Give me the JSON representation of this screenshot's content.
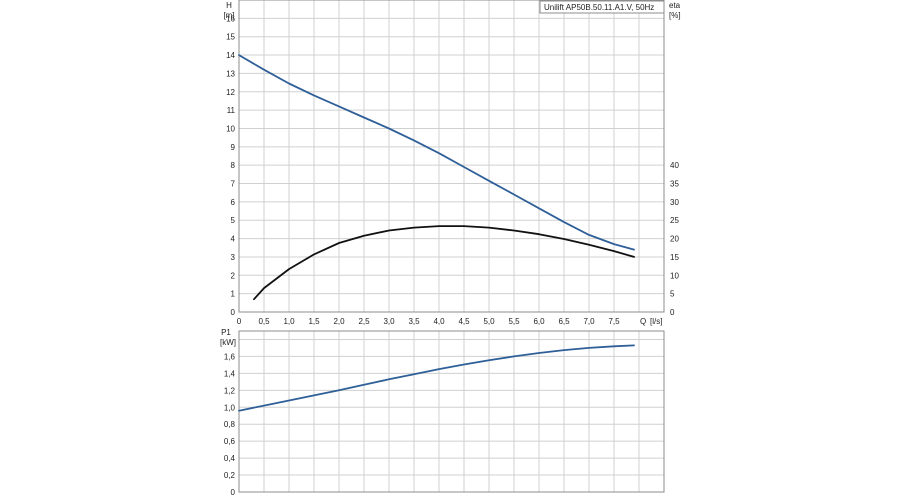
{
  "chart_data": [
    {
      "id": "head_eta",
      "type": "line",
      "legend": "Unilift AP50B.50.11.A1.V, 50Hz",
      "xlabel_unit": "Q [l/s]",
      "xlabel": "Q",
      "xunit": "[l/s]",
      "ylabel": "H",
      "yunit": "[m]",
      "y2label": "eta",
      "y2unit": "[%]",
      "xlim": [
        0,
        8.5
      ],
      "ylim": [
        0,
        17
      ],
      "y2lim": [
        0,
        85
      ],
      "grid": true,
      "x_ticks": [
        "0",
        "0,5",
        "1,0",
        "1,5",
        "2,0",
        "2,5",
        "3,0",
        "3,5",
        "4,0",
        "4,5",
        "5,0",
        "5,5",
        "6,0",
        "6,5",
        "7,0",
        "7,5"
      ],
      "y_ticks": [
        "0",
        "1",
        "2",
        "3",
        "4",
        "5",
        "6",
        "7",
        "8",
        "9",
        "10",
        "11",
        "12",
        "13",
        "14",
        "15",
        "16"
      ],
      "y2_ticks": [
        "0",
        "5",
        "10",
        "15",
        "20",
        "25",
        "30",
        "35",
        "40"
      ],
      "series": [
        {
          "name": "H",
          "axis": "left",
          "color": "#2f5f98",
          "x": [
            0,
            0.5,
            1.0,
            1.5,
            2.0,
            2.5,
            3.0,
            3.5,
            4.0,
            4.5,
            5.0,
            5.5,
            6.0,
            6.5,
            7.0,
            7.5,
            7.9
          ],
          "y": [
            14.0,
            13.2,
            12.45,
            11.8,
            11.2,
            10.6,
            10.0,
            9.35,
            8.65,
            7.9,
            7.15,
            6.4,
            5.65,
            4.9,
            4.2,
            3.7,
            3.4
          ]
        },
        {
          "name": "eta",
          "axis": "right",
          "color": "#111111",
          "x": [
            0.3,
            0.5,
            1.0,
            1.5,
            2.0,
            2.5,
            3.0,
            3.5,
            4.0,
            4.5,
            5.0,
            5.5,
            6.0,
            6.5,
            7.0,
            7.5,
            7.9
          ],
          "y": [
            3.5,
            6.5,
            11.7,
            15.7,
            18.8,
            20.8,
            22.2,
            23.0,
            23.4,
            23.4,
            23.0,
            22.2,
            21.2,
            19.9,
            18.3,
            16.6,
            15.0
          ]
        }
      ]
    },
    {
      "id": "power",
      "type": "line",
      "ylabel": "P1",
      "yunit": "[kW]",
      "xlim": [
        0,
        8.5
      ],
      "ylim": [
        0,
        1.9
      ],
      "grid": true,
      "y_ticks": [
        "0",
        "0,2",
        "0,4",
        "0,6",
        "0,8",
        "1,0",
        "1,2",
        "1,4",
        "1,6"
      ],
      "series": [
        {
          "name": "P1",
          "axis": "left",
          "color": "#2f5f98",
          "x": [
            0,
            0.5,
            1.0,
            1.5,
            2.0,
            2.5,
            3.0,
            3.5,
            4.0,
            4.5,
            5.0,
            5.5,
            6.0,
            6.5,
            7.0,
            7.5,
            7.9
          ],
          "y": [
            0.96,
            1.02,
            1.08,
            1.14,
            1.2,
            1.265,
            1.33,
            1.39,
            1.45,
            1.505,
            1.555,
            1.6,
            1.64,
            1.675,
            1.7,
            1.72,
            1.73
          ]
        }
      ]
    }
  ]
}
